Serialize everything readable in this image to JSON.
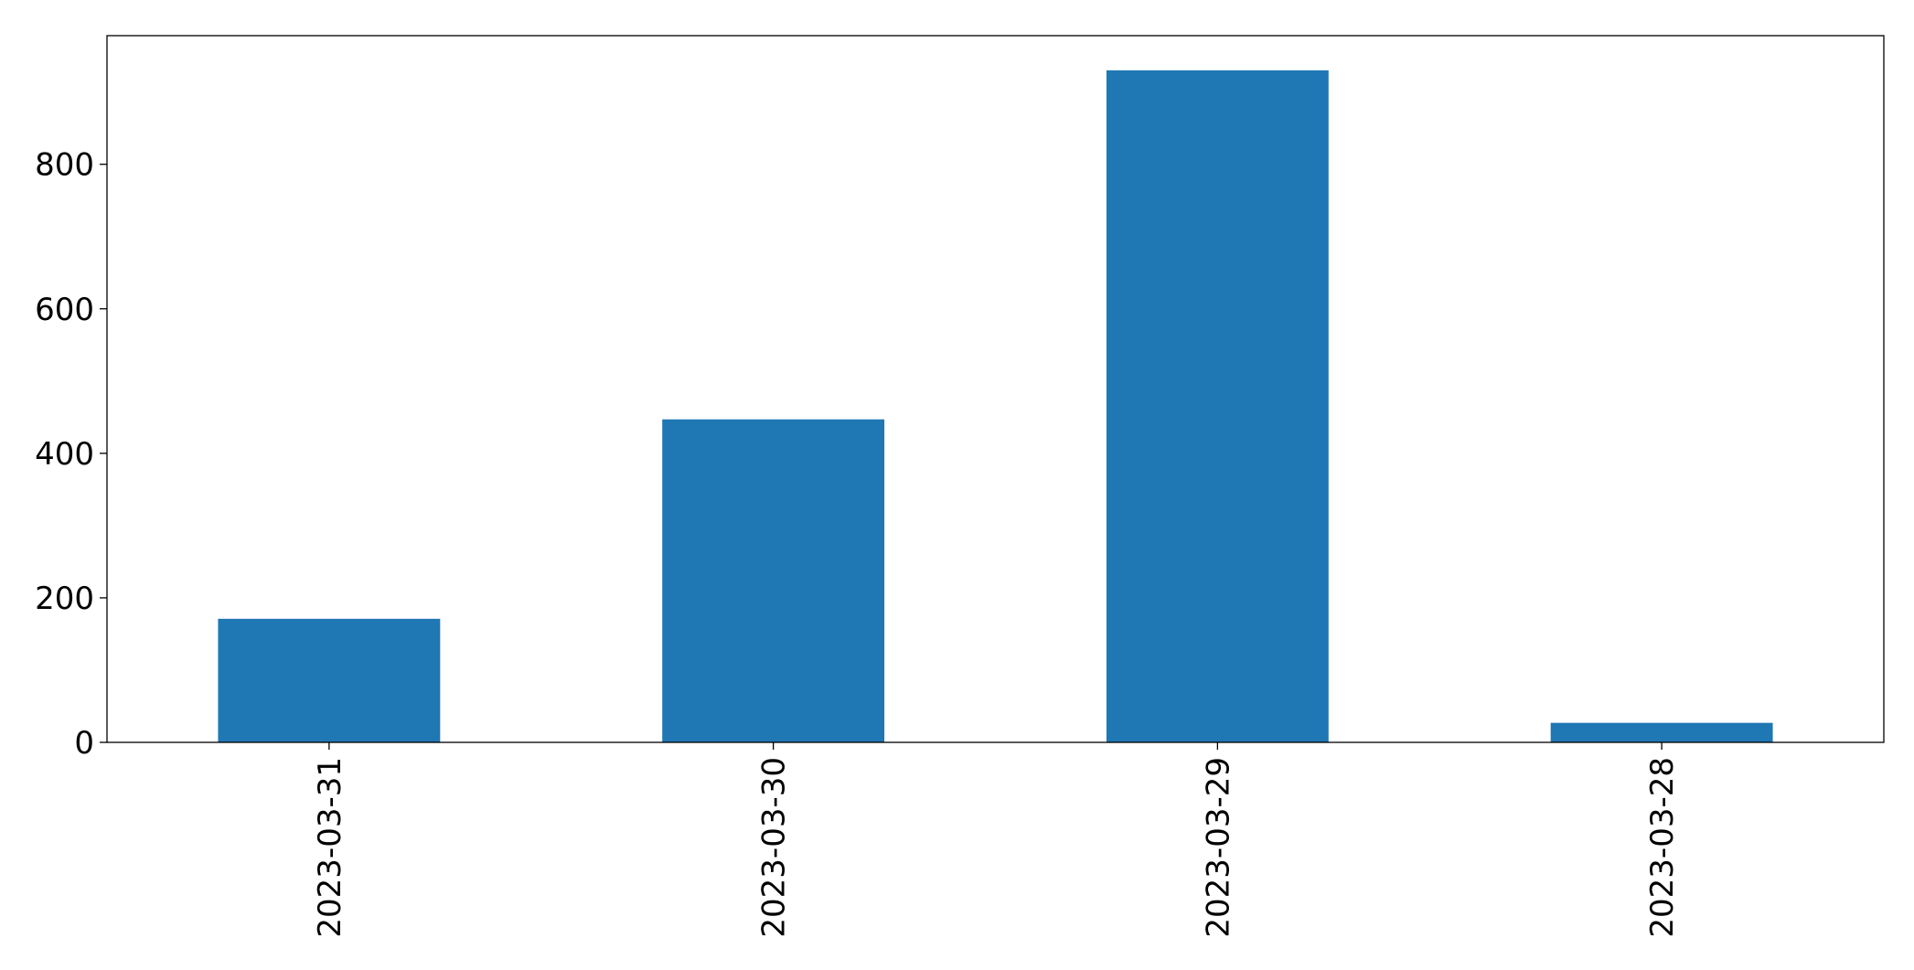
{
  "chart_data": {
    "type": "bar",
    "title": "",
    "xlabel": "",
    "ylabel": "",
    "categories": [
      "2023-03-31",
      "2023-03-30",
      "2023-03-29",
      "2023-03-28"
    ],
    "values": [
      171,
      447,
      930,
      27
    ],
    "ylim": [
      0,
      978
    ],
    "yticks": [
      0,
      200,
      400,
      600,
      800
    ],
    "bar_color": "#1f77b4",
    "grid": false,
    "legend": "none",
    "x_tick_rotation": "vertical"
  }
}
